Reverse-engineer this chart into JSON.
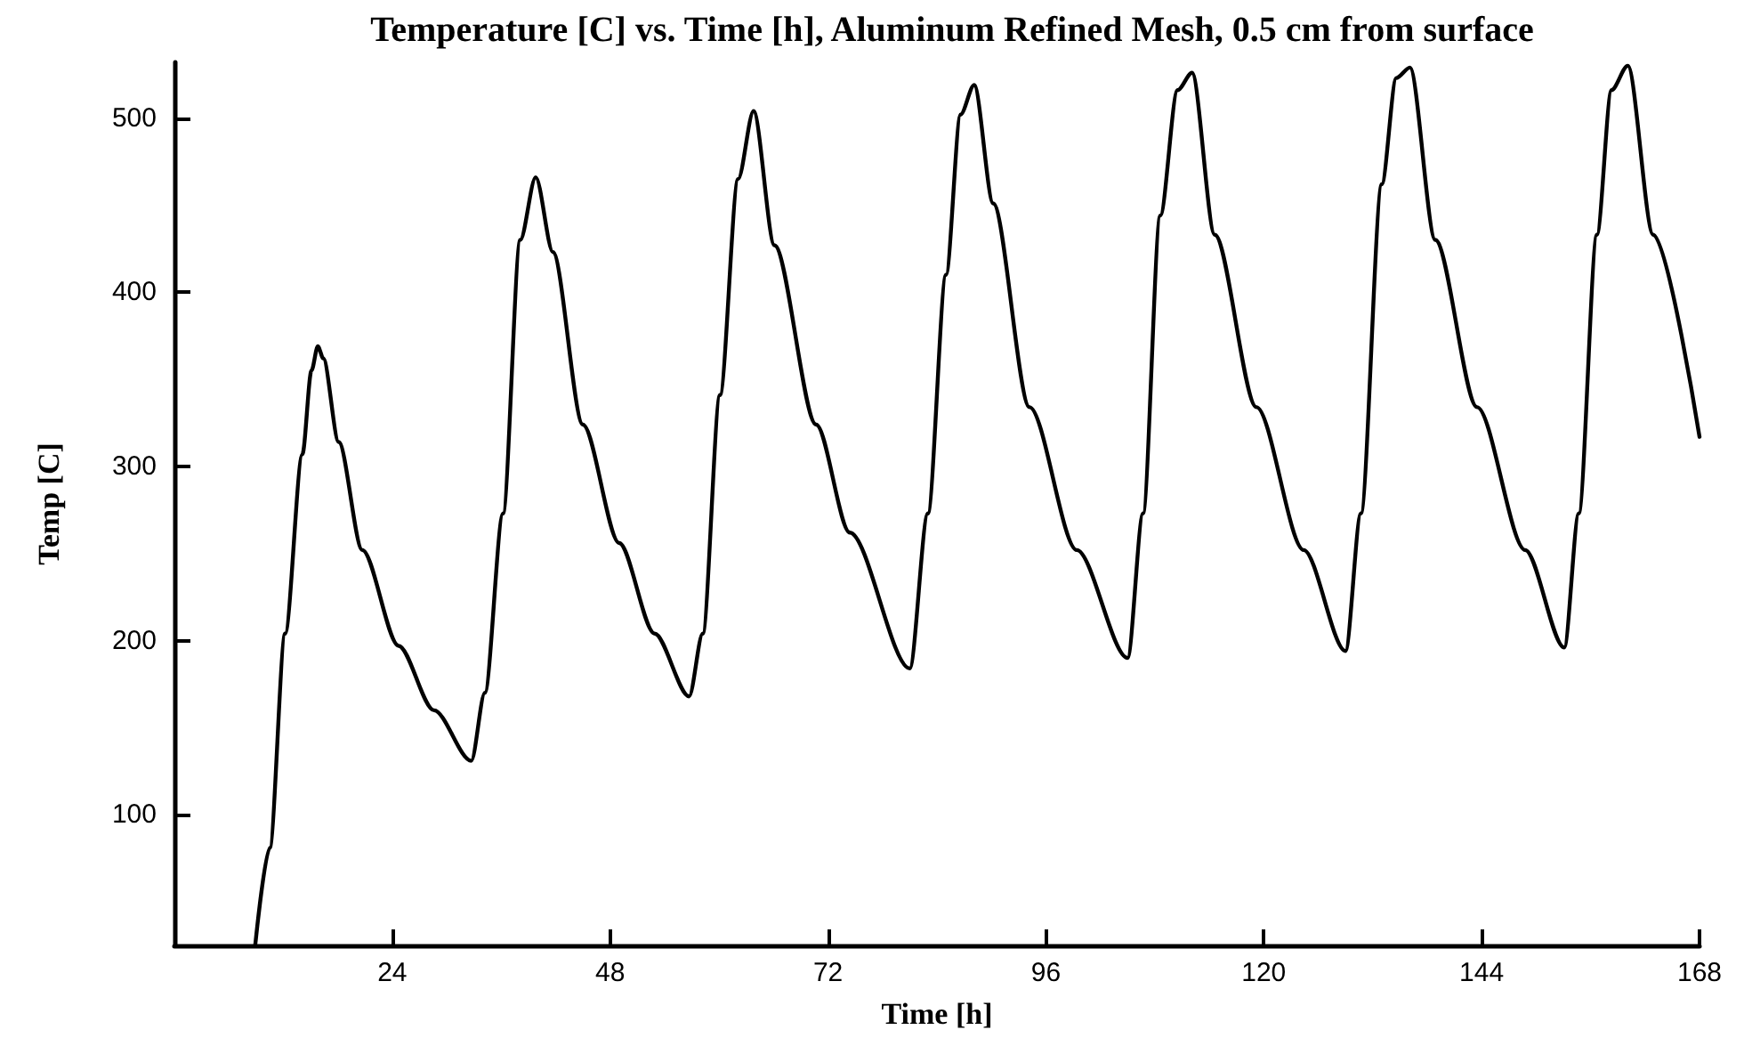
{
  "chart_data": {
    "type": "line",
    "title": "Temperature [C] vs. Time [h], Aluminum Refined Mesh, 0.5 cm from surface",
    "xlabel": "Time [h]",
    "ylabel": "Temp [C]",
    "xlim": [
      0,
      168
    ],
    "xticks": [
      24,
      48,
      72,
      96,
      120,
      144,
      168
    ],
    "ylim": [
      25,
      532
    ],
    "yticks": [
      100,
      200,
      300,
      400,
      500
    ],
    "grid": false,
    "marker": "none",
    "line_style": "solid",
    "series": [
      {
        "color": "#000000",
        "x": [
          8.9,
          10.5,
          12.2,
          14.1,
          15.1,
          15.8,
          16.4,
          18.1,
          20.7,
          24.7,
          28.6,
          32.7,
          34.2,
          36.2,
          38.1,
          39.8,
          41.7,
          45.0,
          49.0,
          52.9,
          56.7,
          58.2,
          60.1,
          62.1,
          63.8,
          66.1,
          70.7,
          74.4,
          81.0,
          83.0,
          85.0,
          86.6,
          88.1,
          90.2,
          94.2,
          99.4,
          105.0,
          106.7,
          108.6,
          110.5,
          112.1,
          114.6,
          119.2,
          124.4,
          129.0,
          130.7,
          133.0,
          134.6,
          136.1,
          138.9,
          143.5,
          148.8,
          153.1,
          154.7,
          156.7,
          158.3,
          160.1,
          162.9,
          168
        ],
        "values": [
          25,
          81,
          204,
          307,
          355,
          369,
          362,
          314,
          252,
          197,
          160,
          131,
          170,
          273,
          430,
          466,
          423,
          324,
          256,
          204,
          168,
          204,
          341,
          465,
          504,
          427,
          324,
          262,
          184,
          273,
          410,
          502,
          519,
          451,
          334,
          252,
          190,
          273,
          444,
          516,
          526,
          433,
          334,
          252,
          194,
          273,
          462,
          523,
          529,
          430,
          334,
          252,
          196,
          273,
          433,
          516,
          530,
          433,
          317
        ]
      }
    ]
  }
}
